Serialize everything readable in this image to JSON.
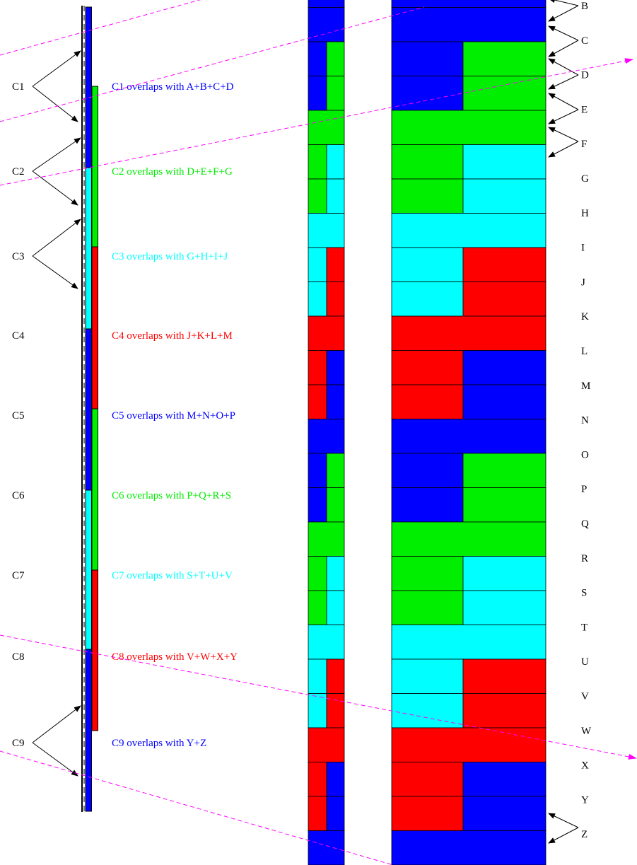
{
  "colors": {
    "blue": "#0000ff",
    "green": "#00ee00",
    "cyan": "#00ffff",
    "red": "#ff0000",
    "guide": "#ff00ff",
    "arrow": "#000000"
  },
  "clusters": [
    {
      "label": "C1",
      "text": "C1 overlaps with A+B+C+D",
      "color": "blue"
    },
    {
      "label": "C2",
      "text": "C2 overlaps with D+E+F+G",
      "color": "green"
    },
    {
      "label": "C3",
      "text": "C3 overlaps with G+H+I+J",
      "color": "cyan"
    },
    {
      "label": "C4",
      "text": "C4 overlaps with J+K+L+M",
      "color": "red"
    },
    {
      "label": "C5",
      "text": "C5 overlaps with M+N+O+P",
      "color": "blue"
    },
    {
      "label": "C6",
      "text": "C6 overlaps with P+Q+R+S",
      "color": "green"
    },
    {
      "label": "C7",
      "text": "C7 overlaps with S+T+U+V",
      "color": "cyan"
    },
    {
      "label": "C8",
      "text": "C8 overlaps with V+W+X+Y",
      "color": "red"
    },
    {
      "label": "C9",
      "text": "C9 overlaps with Y+Z",
      "color": "blue"
    }
  ],
  "segments": [
    "B",
    "C",
    "D",
    "E",
    "F",
    "G",
    "H",
    "I",
    "J",
    "K",
    "L",
    "M",
    "N",
    "O",
    "P",
    "Q",
    "R",
    "S",
    "T",
    "U",
    "V",
    "W",
    "X",
    "Y",
    "Z"
  ],
  "arrowed_clusters": [
    "C1",
    "C2",
    "C3",
    "C9"
  ],
  "arrowed_segments": [
    "B",
    "C",
    "D",
    "E",
    "F",
    "Z"
  ]
}
